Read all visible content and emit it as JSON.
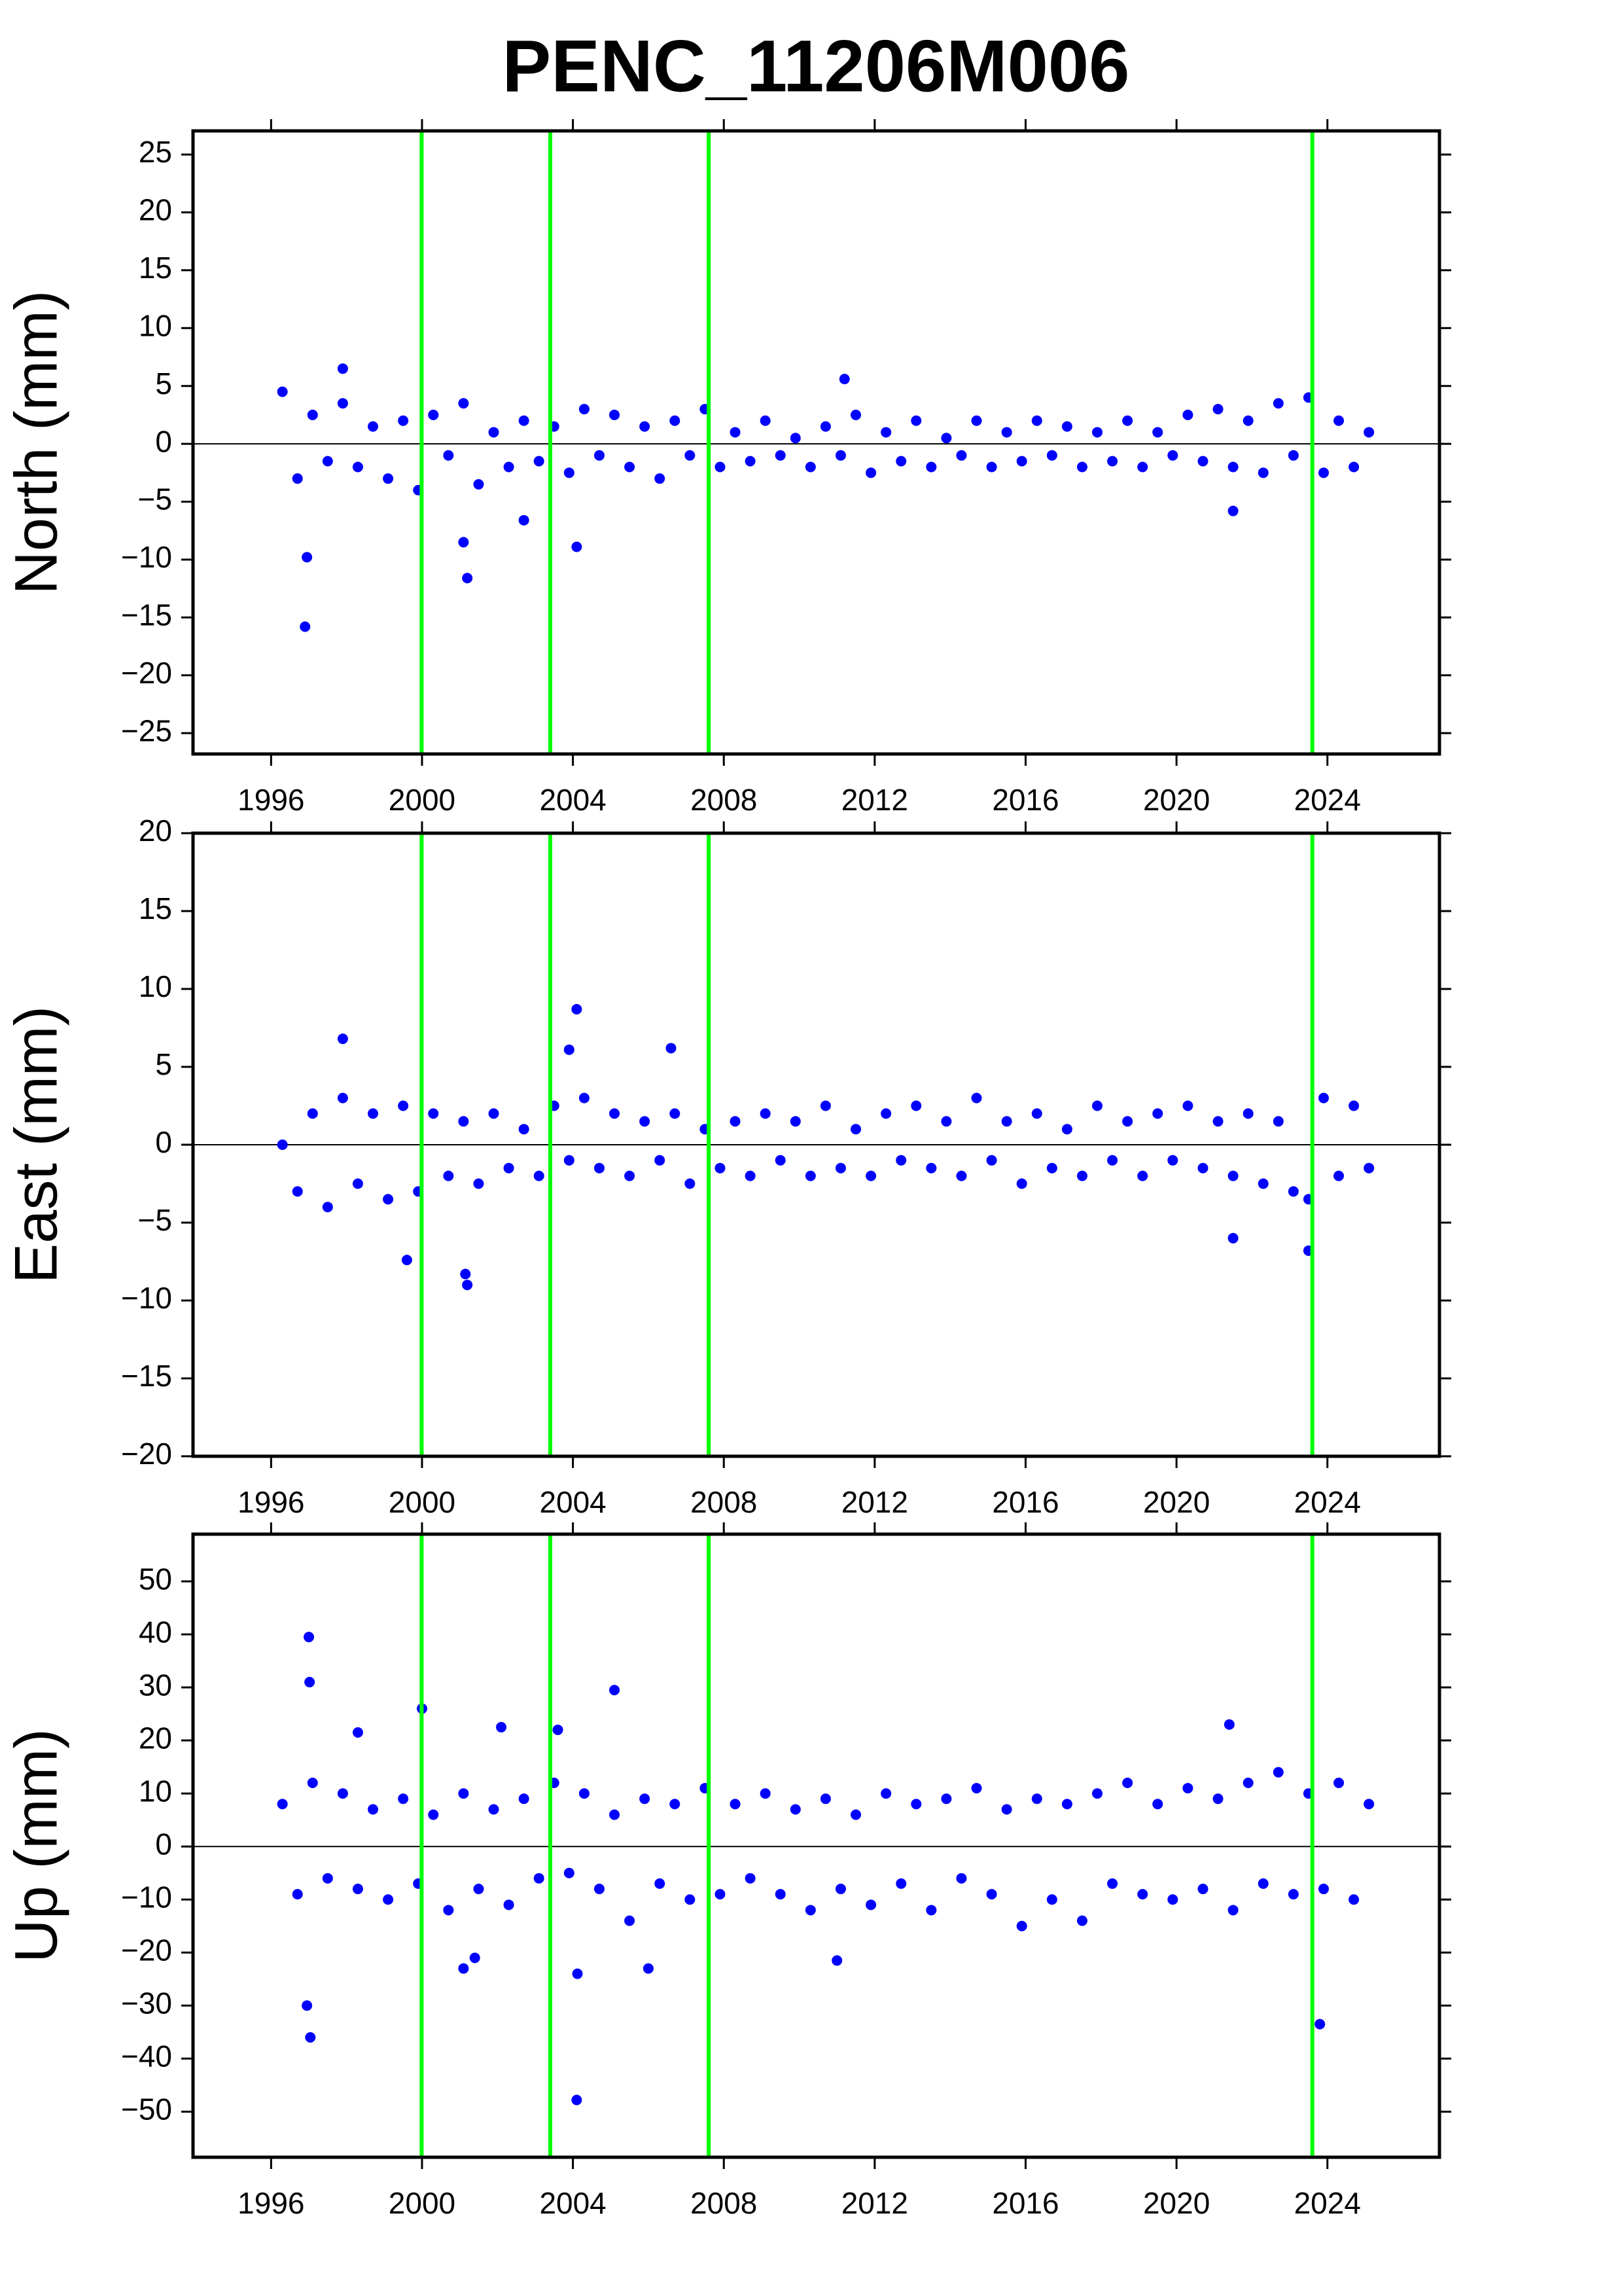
{
  "title": "PENC_11206M006",
  "chart_data": [
    {
      "type": "scatter",
      "ylabel": "North (mm)",
      "color": "#0000ff",
      "vline_color": "#00ff00",
      "hline": 0,
      "vlines": [
        1999.99,
        2003.4,
        2007.6,
        2023.6
      ],
      "xlim": [
        1993.93,
        2026.97
      ],
      "xticks": [
        1996,
        2000,
        2004,
        2008,
        2012,
        2016,
        2020,
        2024
      ],
      "ylim": [
        -26.8,
        27.04
      ],
      "yticks": [
        {
          "value": -25,
          "label": "−25"
        },
        {
          "value": -20,
          "label": "−20"
        },
        {
          "value": -15,
          "label": "−15"
        },
        {
          "value": -10,
          "label": "−10"
        },
        {
          "value": -5,
          "label": "−5"
        },
        0,
        5,
        10,
        15,
        20,
        25
      ],
      "x": [
        1996.3,
        1996.7,
        1997.1,
        1997.5,
        1997.9,
        1998.3,
        1998.7,
        1999.1,
        1999.5,
        1999.9,
        2000.3,
        2000.7,
        2001.1,
        2001.5,
        2001.9,
        2002.3,
        2002.7,
        2003.1,
        2003.5,
        2003.9,
        2004.3,
        2004.7,
        2005.1,
        2005.5,
        2005.9,
        2006.3,
        2006.7,
        2007.1,
        2007.5,
        2007.9,
        2008.3,
        2008.7,
        2009.1,
        2009.5,
        2009.9,
        2010.3,
        2010.7,
        2011.1,
        2011.5,
        2011.9,
        2012.3,
        2012.7,
        2013.1,
        2013.5,
        2013.9,
        2014.3,
        2014.7,
        2015.1,
        2015.5,
        2015.9,
        2016.3,
        2016.7,
        2017.1,
        2017.5,
        2017.9,
        2018.3,
        2018.7,
        2019.1,
        2019.5,
        2019.9,
        2020.3,
        2020.7,
        2021.1,
        2021.5,
        2021.9,
        2022.3,
        2022.7,
        2023.1,
        2023.5,
        2023.9,
        2024.3,
        2024.7,
        2025.1,
        1996.9,
        1996.95,
        2001.1,
        2001.2,
        2002.7,
        2004.1,
        2021.5,
        1997.9,
        2011.2
      ],
      "values": [
        4.5,
        -3,
        2.5,
        -1.5,
        3.5,
        -2,
        1.5,
        -3,
        2,
        -4,
        2.5,
        -1,
        3.5,
        -3.5,
        1,
        -2,
        2,
        -1.5,
        1.5,
        -2.5,
        3,
        -1,
        2.5,
        -2,
        1.5,
        -3,
        2,
        -1,
        3,
        -2,
        1,
        -1.5,
        2,
        -1,
        0.5,
        -2,
        1.5,
        -1,
        2.5,
        -2.5,
        1,
        -1.5,
        2,
        -2,
        0.5,
        -1,
        2,
        -2,
        1,
        -1.5,
        2,
        -1,
        1.5,
        -2,
        1,
        -1.5,
        2,
        -2,
        1,
        -1,
        2.5,
        -1.5,
        3,
        -2,
        2,
        -2.5,
        3.5,
        -1,
        4,
        -2.5,
        2,
        -2,
        1,
        -15.8,
        -9.8,
        -8.5,
        -11.6,
        -6.6,
        -8.9,
        -5.8,
        6.5,
        5.6
      ]
    },
    {
      "type": "scatter",
      "ylabel": "East (mm)",
      "color": "#0000ff",
      "vline_color": "#00ff00",
      "hline": 0,
      "vlines": [
        1999.99,
        2003.4,
        2007.6,
        2023.6
      ],
      "xlim": [
        1993.93,
        2026.97
      ],
      "xticks": [
        1996,
        2000,
        2004,
        2008,
        2012,
        2016,
        2020,
        2024
      ],
      "ylim": [
        -20,
        20
      ],
      "yticks": [
        {
          "value": -20,
          "label": "−20"
        },
        {
          "value": -15,
          "label": "−15"
        },
        {
          "value": -10,
          "label": "−10"
        },
        {
          "value": -5,
          "label": "−5"
        },
        0,
        5,
        10,
        15,
        20
      ],
      "x": [
        1996.3,
        1996.7,
        1997.1,
        1997.5,
        1997.9,
        1998.3,
        1998.7,
        1999.1,
        1999.5,
        1999.9,
        2000.3,
        2000.7,
        2001.1,
        2001.5,
        2001.9,
        2002.3,
        2002.7,
        2003.1,
        2003.5,
        2003.9,
        2004.3,
        2004.7,
        2005.1,
        2005.5,
        2005.9,
        2006.3,
        2006.7,
        2007.1,
        2007.5,
        2007.9,
        2008.3,
        2008.7,
        2009.1,
        2009.5,
        2009.9,
        2010.3,
        2010.7,
        2011.1,
        2011.5,
        2011.9,
        2012.3,
        2012.7,
        2013.1,
        2013.5,
        2013.9,
        2014.3,
        2014.7,
        2015.1,
        2015.5,
        2015.9,
        2016.3,
        2016.7,
        2017.1,
        2017.5,
        2017.9,
        2018.3,
        2018.7,
        2019.1,
        2019.5,
        2019.9,
        2020.3,
        2020.7,
        2021.1,
        2021.5,
        2021.9,
        2022.3,
        2022.7,
        2023.1,
        2023.5,
        2023.9,
        2024.3,
        2024.7,
        2025.1,
        1997.9,
        2004.1,
        2003.9,
        2006.6,
        2001.2,
        2001.15,
        1999.6,
        2023.5,
        2021.5
      ],
      "values": [
        0,
        -3,
        2,
        -4,
        3,
        -2.5,
        2,
        -3.5,
        2.5,
        -3,
        2,
        -2,
        1.5,
        -2.5,
        2,
        -1.5,
        1,
        -2,
        2.5,
        -1,
        3,
        -1.5,
        2,
        -2,
        1.5,
        -1,
        2,
        -2.5,
        1,
        -1.5,
        1.5,
        -2,
        2,
        -1,
        1.5,
        -2,
        2.5,
        -1.5,
        1,
        -2,
        2,
        -1,
        2.5,
        -1.5,
        1.5,
        -2,
        3,
        -1,
        1.5,
        -2.5,
        2,
        -1.5,
        1,
        -2,
        2.5,
        -1,
        1.5,
        -2,
        2,
        -1,
        2.5,
        -1.5,
        1.5,
        -2,
        2,
        -2.5,
        1.5,
        -3,
        -3.5,
        3,
        -2,
        2.5,
        -1.5,
        6.8,
        8.7,
        6.1,
        6.2,
        -9,
        -8.3,
        -7.4,
        -6.8,
        -6
      ]
    },
    {
      "type": "scatter",
      "ylabel": "Up (mm)",
      "color": "#0000ff",
      "vline_color": "#00ff00",
      "hline": 0,
      "vlines": [
        1999.99,
        2003.4,
        2007.6,
        2023.6
      ],
      "xlim": [
        1993.93,
        2026.97
      ],
      "xticks": [
        1996,
        2000,
        2004,
        2008,
        2012,
        2016,
        2020,
        2024
      ],
      "ylim": [
        -58.6,
        58.9
      ],
      "yticks": [
        {
          "value": -50,
          "label": "−50"
        },
        {
          "value": -40,
          "label": "−40"
        },
        {
          "value": -30,
          "label": "−30"
        },
        {
          "value": -20,
          "label": "−20"
        },
        {
          "value": -10,
          "label": "−10"
        },
        0,
        10,
        20,
        30,
        40,
        50
      ],
      "x": [
        1996.3,
        1996.7,
        1997.1,
        1997.5,
        1997.9,
        1998.3,
        1998.7,
        1999.1,
        1999.5,
        1999.9,
        2000.3,
        2000.7,
        2001.1,
        2001.5,
        2001.9,
        2002.3,
        2002.7,
        2003.1,
        2003.5,
        2003.9,
        2004.3,
        2004.7,
        2005.1,
        2005.5,
        2005.9,
        2006.3,
        2006.7,
        2007.1,
        2007.5,
        2007.9,
        2008.3,
        2008.7,
        2009.1,
        2009.5,
        2009.9,
        2010.3,
        2010.7,
        2011.1,
        2011.5,
        2011.9,
        2012.3,
        2012.7,
        2013.1,
        2013.5,
        2013.9,
        2014.3,
        2014.7,
        2015.1,
        2015.5,
        2015.9,
        2016.3,
        2016.7,
        2017.1,
        2017.5,
        2017.9,
        2018.3,
        2018.7,
        2019.1,
        2019.5,
        2019.9,
        2020.3,
        2020.7,
        2021.1,
        2021.5,
        2021.9,
        2022.3,
        2022.7,
        2023.1,
        2023.5,
        2023.9,
        2024.3,
        2024.7,
        2025.1,
        1997.0,
        1997.02,
        1997.04,
        1996.95,
        2000.0,
        2002.1,
        2003.6,
        2005.1,
        2004.1,
        2004.12,
        2001.1,
        2001.4,
        2006.0,
        2011.0,
        2021.4,
        2023.8,
        1998.3
      ],
      "values": [
        8,
        -9,
        12,
        -6,
        10,
        -8,
        7,
        -10,
        9,
        -7,
        6,
        -12,
        10,
        -8,
        7,
        -11,
        9,
        -6,
        12,
        -5,
        10,
        -8,
        6,
        -14,
        9,
        -7,
        8,
        -10,
        11,
        -9,
        8,
        -6,
        10,
        -9,
        7,
        -12,
        9,
        -8,
        6,
        -11,
        10,
        -7,
        8,
        -12,
        9,
        -6,
        11,
        -9,
        7,
        -15,
        9,
        -10,
        8,
        -14,
        10,
        -7,
        12,
        -9,
        8,
        -10,
        11,
        -8,
        9,
        -12,
        12,
        -7,
        14,
        -9,
        10,
        -8,
        12,
        -10,
        8,
        39.5,
        31,
        -36,
        -30,
        26,
        22.5,
        22,
        29.5,
        -47.8,
        -24,
        -23,
        -21,
        -23,
        -21.5,
        23,
        -33.5,
        21.5
      ]
    }
  ]
}
